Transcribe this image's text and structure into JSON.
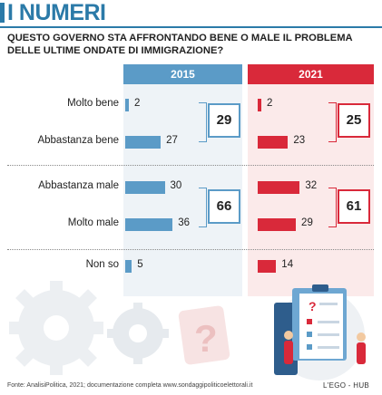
{
  "header": {
    "title": "I NUMERI"
  },
  "question": "QUESTO GOVERNO STA AFFRONTANDO BENE O MALE IL PROBLEMA DELLE ULTIME ONDATE DI IMMIGRAZIONE?",
  "colors": {
    "blue": "#5b9bc7",
    "red": "#d9293a",
    "title_blue": "#2b7aa8"
  },
  "chart_data": {
    "type": "bar",
    "orientation": "horizontal",
    "categories": [
      "Molto bene",
      "Abbastanza bene",
      "Abbastanza male",
      "Molto male",
      "Non so"
    ],
    "series": [
      {
        "name": "2015",
        "values": [
          2,
          27,
          30,
          36,
          5
        ]
      },
      {
        "name": "2021",
        "values": [
          2,
          23,
          32,
          29,
          14
        ]
      }
    ],
    "totals": [
      {
        "group": [
          "Molto bene",
          "Abbastanza bene"
        ],
        "2015": "29",
        "2021": "25"
      },
      {
        "group": [
          "Abbastanza male",
          "Molto male"
        ],
        "2015": "66",
        "2021": "61"
      }
    ],
    "xlim": [
      0,
      40
    ]
  },
  "footer": {
    "source": "Fonte: AnalisiPolitica, 2021; documentazione completa www.sondaggipoliticoelettorali.it",
    "brand": "L'EGO - HUB"
  }
}
